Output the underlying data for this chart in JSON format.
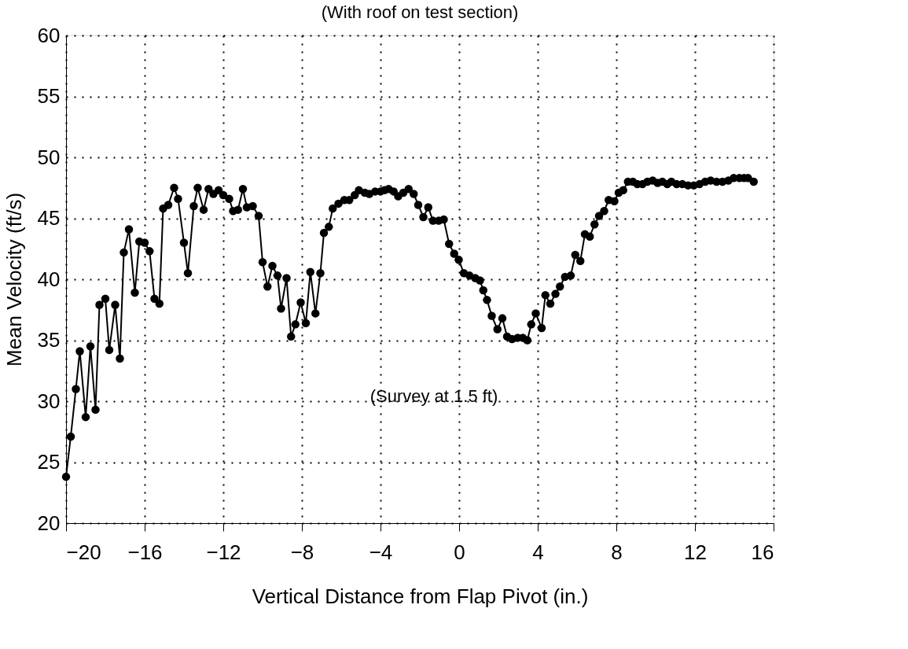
{
  "chart_data": {
    "type": "line",
    "title": "(With roof on test section)",
    "xlabel": "Vertical Distance from Flap Pivot (in.)",
    "ylabel": "Mean Velocity (ft/s)",
    "annotations": [
      "(Survey at 1.5 ft)"
    ],
    "series": [
      {
        "color": "#000000",
        "x": [
          -20.0,
          -19.76,
          -19.5,
          -19.3,
          -19.0,
          -18.76,
          -18.5,
          -18.3,
          -18.0,
          -17.8,
          -17.5,
          -17.26,
          -17.06,
          -16.8,
          -16.5,
          -16.27,
          -16.0,
          -15.75,
          -15.5,
          -15.25,
          -15.06,
          -14.8,
          -14.5,
          -14.3,
          -14.0,
          -13.8,
          -13.5,
          -13.3,
          -13.0,
          -12.75,
          -12.5,
          -12.24,
          -12.0,
          -11.7,
          -11.5,
          -11.25,
          -11.0,
          -10.8,
          -10.5,
          -10.2,
          -10.0,
          -9.75,
          -9.5,
          -9.24,
          -9.06,
          -8.78,
          -8.55,
          -8.33,
          -8.06,
          -7.8,
          -7.57,
          -7.31,
          -7.06,
          -6.88,
          -6.63,
          -6.43,
          -6.14,
          -5.84,
          -5.59,
          -5.31,
          -5.1,
          -4.8,
          -4.57,
          -4.27,
          -4.0,
          -3.8,
          -3.59,
          -3.33,
          -3.1,
          -2.84,
          -2.57,
          -2.31,
          -2.08,
          -1.82,
          -1.57,
          -1.33,
          -1.04,
          -0.78,
          -0.51,
          -0.25,
          -0.02,
          0.24,
          0.53,
          0.82,
          1.06,
          1.23,
          1.42,
          1.66,
          1.95,
          2.2,
          2.44,
          2.69,
          2.98,
          3.24,
          3.47,
          3.67,
          3.9,
          4.2,
          4.39,
          4.64,
          4.9,
          5.13,
          5.39,
          5.68,
          5.91,
          6.17,
          6.4,
          6.65,
          6.89,
          7.12,
          7.38,
          7.61,
          7.9,
          8.12,
          8.35,
          8.59,
          8.84,
          9.07,
          9.33,
          9.58,
          9.85,
          10.1,
          10.34,
          10.59,
          10.8,
          11.07,
          11.36,
          11.65,
          11.94,
          12.23,
          12.52,
          12.8,
          13.1,
          13.4,
          13.7,
          13.97,
          14.26,
          14.5,
          14.7,
          14.99
        ],
        "values": [
          23.8,
          27.1,
          31.0,
          34.1,
          28.7,
          34.5,
          29.3,
          37.9,
          38.4,
          34.2,
          37.9,
          33.5,
          42.2,
          44.1,
          38.9,
          43.1,
          43.0,
          42.3,
          38.4,
          38.0,
          45.8,
          46.1,
          47.5,
          46.6,
          43.0,
          40.5,
          46.0,
          47.5,
          45.7,
          47.4,
          47.0,
          47.3,
          46.9,
          46.6,
          45.6,
          45.7,
          47.4,
          45.9,
          46.0,
          45.2,
          41.4,
          39.4,
          41.1,
          40.3,
          37.6,
          40.1,
          35.3,
          36.3,
          38.1,
          36.4,
          40.6,
          37.2,
          40.5,
          43.8,
          44.3,
          45.8,
          46.2,
          46.5,
          46.5,
          46.9,
          47.3,
          47.1,
          47.0,
          47.2,
          47.2,
          47.3,
          47.4,
          47.2,
          46.8,
          47.1,
          47.4,
          47.0,
          46.1,
          45.1,
          45.9,
          44.8,
          44.8,
          44.9,
          42.9,
          42.1,
          41.6,
          40.5,
          40.3,
          40.1,
          39.9,
          39.1,
          38.3,
          37.0,
          35.9,
          36.8,
          35.3,
          35.1,
          35.2,
          35.2,
          35.0,
          36.3,
          37.2,
          36.0,
          38.7,
          38.0,
          38.8,
          39.4,
          40.2,
          40.3,
          42.0,
          41.5,
          43.7,
          43.5,
          44.5,
          45.2,
          45.6,
          46.5,
          46.4,
          47.1,
          47.3,
          48.0,
          48.0,
          47.8,
          47.8,
          48.0,
          48.1,
          47.9,
          48.0,
          47.8,
          48.0,
          47.8,
          47.8,
          47.7,
          47.7,
          47.8,
          48.0,
          48.1,
          48.0,
          48.0,
          48.1,
          48.3,
          48.3,
          48.3,
          48.3,
          48.0
        ]
      }
    ],
    "xlim": [
      -20,
      16
    ],
    "xticks": [
      -20,
      -16,
      -12,
      -8,
      -4,
      0,
      4,
      8,
      12,
      16
    ],
    "ylim": [
      20,
      60
    ],
    "yticks": [
      20,
      25,
      30,
      35,
      40,
      45,
      50,
      55,
      60
    ],
    "grid": true,
    "marker": "circle",
    "line_style": "solid"
  }
}
